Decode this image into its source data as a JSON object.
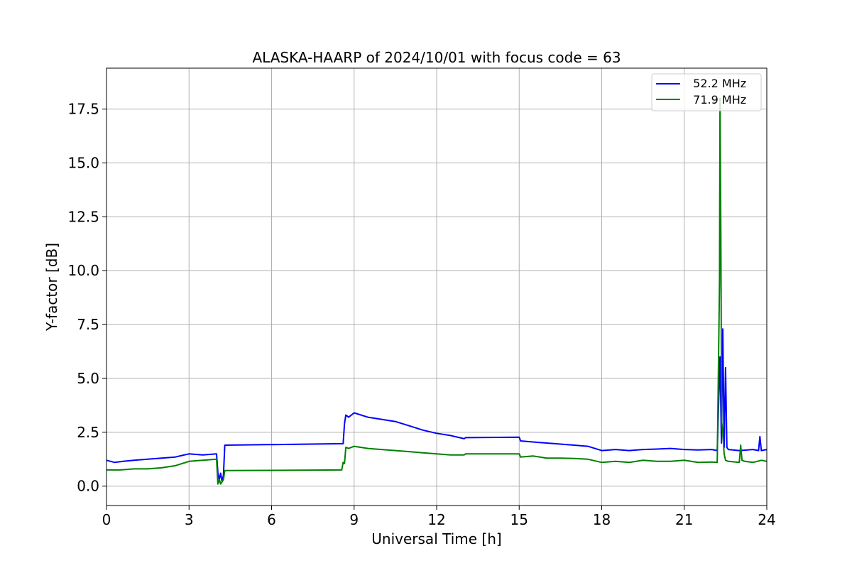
{
  "chart_data": {
    "type": "line",
    "title": "ALASKA-HAARP of 2024/10/01 with focus code = 63",
    "xlabel": "Universal Time [h]",
    "ylabel": "Y-factor [dB]",
    "xlim": [
      0,
      24
    ],
    "ylim": [
      -0.9,
      19.4
    ],
    "xticks": [
      0,
      3,
      6,
      9,
      12,
      15,
      18,
      21,
      24
    ],
    "xtick_labels": [
      "0",
      "3",
      "6",
      "9",
      "12",
      "15",
      "18",
      "21",
      "24"
    ],
    "yticks": [
      0.0,
      2.5,
      5.0,
      7.5,
      10.0,
      12.5,
      15.0,
      17.5
    ],
    "ytick_labels": [
      "0.0",
      "2.5",
      "5.0",
      "7.5",
      "10.0",
      "12.5",
      "15.0",
      "17.5"
    ],
    "grid": true,
    "legend_position": "top-right",
    "series": [
      {
        "name": "  52.2 MHz",
        "color": "#0000ff",
        "x": [
          0,
          0.3,
          0.6,
          1.0,
          1.5,
          2.0,
          2.5,
          3.0,
          3.5,
          4.0,
          4.05,
          4.1,
          4.15,
          4.2,
          4.25,
          4.3,
          8.6,
          8.65,
          8.7,
          8.8,
          9.0,
          9.5,
          10.0,
          10.5,
          11.0,
          11.5,
          12.0,
          12.5,
          13.0,
          13.05,
          15.0,
          15.05,
          15.5,
          16.0,
          16.5,
          17.0,
          17.5,
          18.0,
          18.5,
          19.0,
          19.5,
          20.0,
          20.5,
          21.0,
          21.5,
          22.0,
          22.2,
          22.3,
          22.35,
          22.4,
          22.45,
          22.5,
          22.55,
          22.6,
          23.0,
          23.5,
          23.7,
          23.75,
          23.8,
          24.0
        ],
        "values": [
          1.2,
          1.1,
          1.15,
          1.2,
          1.25,
          1.3,
          1.35,
          1.5,
          1.45,
          1.5,
          0.6,
          0.3,
          0.6,
          0.2,
          0.5,
          1.9,
          1.97,
          2.9,
          3.3,
          3.2,
          3.4,
          3.2,
          3.1,
          3.0,
          2.8,
          2.6,
          2.45,
          2.35,
          2.2,
          2.25,
          2.27,
          2.1,
          2.05,
          2.0,
          1.95,
          1.9,
          1.85,
          1.65,
          1.7,
          1.65,
          1.7,
          1.72,
          1.75,
          1.7,
          1.68,
          1.7,
          1.65,
          6.0,
          2.0,
          7.3,
          1.8,
          5.5,
          1.8,
          1.7,
          1.65,
          1.7,
          1.65,
          2.3,
          1.65,
          1.7
        ]
      },
      {
        "name": "  71.9 MHz",
        "color": "#008000",
        "x": [
          0,
          0.5,
          1.0,
          1.5,
          2.0,
          2.5,
          3.0,
          3.5,
          4.0,
          4.05,
          4.1,
          4.15,
          4.2,
          4.25,
          4.3,
          8.55,
          8.6,
          8.65,
          8.7,
          8.8,
          9.0,
          9.5,
          10.0,
          10.5,
          11.0,
          11.5,
          12.0,
          12.5,
          13.0,
          13.05,
          15.0,
          15.05,
          15.5,
          16.0,
          16.5,
          17.0,
          17.5,
          18.0,
          18.5,
          19.0,
          19.5,
          20.0,
          20.5,
          21.0,
          21.5,
          22.0,
          22.2,
          22.28,
          22.3,
          22.33,
          22.36,
          22.4,
          22.45,
          22.5,
          22.6,
          23.0,
          23.05,
          23.1,
          23.2,
          23.5,
          23.8,
          24.0
        ],
        "values": [
          0.75,
          0.75,
          0.8,
          0.8,
          0.85,
          0.95,
          1.15,
          1.2,
          1.25,
          0.1,
          0.3,
          0.1,
          0.2,
          0.3,
          0.72,
          0.75,
          1.1,
          1.05,
          1.8,
          1.75,
          1.85,
          1.75,
          1.7,
          1.65,
          1.6,
          1.55,
          1.5,
          1.45,
          1.45,
          1.5,
          1.5,
          1.35,
          1.4,
          1.3,
          1.3,
          1.28,
          1.25,
          1.1,
          1.15,
          1.1,
          1.2,
          1.15,
          1.15,
          1.2,
          1.1,
          1.12,
          1.1,
          9.5,
          18.0,
          11.5,
          3.0,
          2.5,
          1.5,
          1.2,
          1.15,
          1.1,
          1.9,
          1.2,
          1.15,
          1.1,
          1.2,
          1.15
        ]
      }
    ]
  }
}
